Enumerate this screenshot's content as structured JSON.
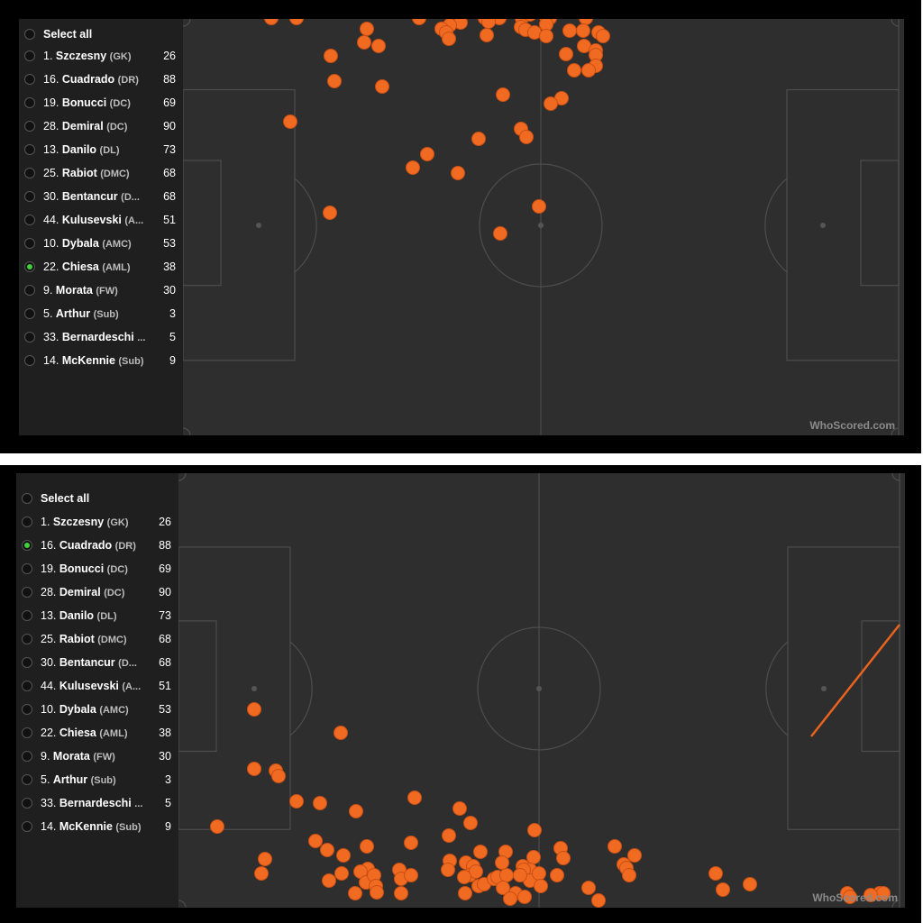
{
  "panels": [
    {
      "select_all": "Select all",
      "players": [
        {
          "num": "1.",
          "name": "Szczesny",
          "pos": "(GK)",
          "val": "26",
          "selected": false
        },
        {
          "num": "16.",
          "name": "Cuadrado",
          "pos": "(DR)",
          "val": "88",
          "selected": false
        },
        {
          "num": "19.",
          "name": "Bonucci",
          "pos": "(DC)",
          "val": "69",
          "selected": false
        },
        {
          "num": "28.",
          "name": "Demiral",
          "pos": "(DC)",
          "val": "90",
          "selected": false
        },
        {
          "num": "13.",
          "name": "Danilo",
          "pos": "(DL)",
          "val": "73",
          "selected": false
        },
        {
          "num": "25.",
          "name": "Rabiot",
          "pos": "(DMC)",
          "val": "68",
          "selected": false
        },
        {
          "num": "30.",
          "name": "Bentancur",
          "pos": "(D...",
          "val": "68",
          "selected": false
        },
        {
          "num": "44.",
          "name": "Kulusevski",
          "pos": "(A...",
          "val": "51",
          "selected": false
        },
        {
          "num": "10.",
          "name": "Dybala",
          "pos": "(AMC)",
          "val": "53",
          "selected": false
        },
        {
          "num": "22.",
          "name": "Chiesa",
          "pos": "(AML)",
          "val": "38",
          "selected": true
        },
        {
          "num": "9.",
          "name": "Morata",
          "pos": "(FW)",
          "val": "30",
          "selected": false
        },
        {
          "num": "5.",
          "name": "Arthur",
          "pos": "(Sub)",
          "val": "3",
          "selected": false
        },
        {
          "num": "33.",
          "name": "Bernardeschi",
          "pos": "...",
          "val": "5",
          "selected": false
        },
        {
          "num": "14.",
          "name": "McKennie",
          "pos": "(Sub)",
          "val": "9",
          "selected": false
        }
      ],
      "watermark": "WhoScored.com",
      "events": [
        [
          98,
          -1
        ],
        [
          126,
          -1
        ],
        [
          262,
          -1
        ],
        [
          335,
          -1
        ],
        [
          351,
          -1
        ],
        [
          376,
          -1
        ],
        [
          447,
          -1
        ],
        [
          385,
          -5
        ],
        [
          402,
          -4
        ],
        [
          407,
          -1
        ],
        [
          403,
          6
        ],
        [
          308,
          4
        ],
        [
          296,
          7
        ],
        [
          287,
          11
        ],
        [
          292,
          15
        ],
        [
          339,
          3
        ],
        [
          295,
          22
        ],
        [
          337,
          18
        ],
        [
          375,
          9
        ],
        [
          380,
          12
        ],
        [
          390,
          15
        ],
        [
          403,
          19
        ],
        [
          429,
          13
        ],
        [
          444,
          13
        ],
        [
          445,
          30
        ],
        [
          425,
          39
        ],
        [
          461,
          15
        ],
        [
          466,
          19
        ],
        [
          458,
          35
        ],
        [
          458,
          40
        ],
        [
          458,
          52
        ],
        [
          450,
          57
        ],
        [
          434,
          57
        ],
        [
          375,
          122
        ],
        [
          328,
          133
        ],
        [
          305,
          171
        ],
        [
          271,
          150
        ],
        [
          255,
          165
        ],
        [
          119,
          114
        ],
        [
          164,
          41
        ],
        [
          201,
          26
        ],
        [
          204,
          11
        ],
        [
          168,
          69
        ],
        [
          217,
          30
        ],
        [
          163,
          215
        ],
        [
          221,
          75
        ],
        [
          355,
          84
        ],
        [
          420,
          88
        ],
        [
          408,
          94
        ],
        [
          381,
          131
        ],
        [
          395,
          208
        ],
        [
          352,
          238
        ]
      ]
    },
    {
      "select_all": "Select all",
      "players": [
        {
          "num": "1.",
          "name": "Szczesny",
          "pos": "(GK)",
          "val": "26",
          "selected": false
        },
        {
          "num": "16.",
          "name": "Cuadrado",
          "pos": "(DR)",
          "val": "88",
          "selected": true
        },
        {
          "num": "19.",
          "name": "Bonucci",
          "pos": "(DC)",
          "val": "69",
          "selected": false
        },
        {
          "num": "28.",
          "name": "Demiral",
          "pos": "(DC)",
          "val": "90",
          "selected": false
        },
        {
          "num": "13.",
          "name": "Danilo",
          "pos": "(DL)",
          "val": "73",
          "selected": false
        },
        {
          "num": "25.",
          "name": "Rabiot",
          "pos": "(DMC)",
          "val": "68",
          "selected": false
        },
        {
          "num": "30.",
          "name": "Bentancur",
          "pos": "(D...",
          "val": "68",
          "selected": false
        },
        {
          "num": "44.",
          "name": "Kulusevski",
          "pos": "(A...",
          "val": "51",
          "selected": false
        },
        {
          "num": "10.",
          "name": "Dybala",
          "pos": "(AMC)",
          "val": "53",
          "selected": false
        },
        {
          "num": "22.",
          "name": "Chiesa",
          "pos": "(AML)",
          "val": "38",
          "selected": false
        },
        {
          "num": "9.",
          "name": "Morata",
          "pos": "(FW)",
          "val": "30",
          "selected": false
        },
        {
          "num": "5.",
          "name": "Arthur",
          "pos": "(Sub)",
          "val": "3",
          "selected": false
        },
        {
          "num": "33.",
          "name": "Bernardeschi",
          "pos": "...",
          "val": "5",
          "selected": false
        },
        {
          "num": "14.",
          "name": "McKennie",
          "pos": "(Sub)",
          "val": "9",
          "selected": false
        }
      ],
      "watermark": "WhoScored.com",
      "events": [
        [
          84,
          262
        ],
        [
          84,
          328
        ],
        [
          108,
          330
        ],
        [
          111,
          336
        ],
        [
          180,
          288
        ],
        [
          131,
          364
        ],
        [
          157,
          366
        ],
        [
          43,
          392
        ],
        [
          197,
          375
        ],
        [
          262,
          360
        ],
        [
          152,
          408
        ],
        [
          96,
          428
        ],
        [
          92,
          444
        ],
        [
          183,
          424
        ],
        [
          165,
          418
        ],
        [
          181,
          444
        ],
        [
          167,
          452
        ],
        [
          209,
          414
        ],
        [
          210,
          439
        ],
        [
          202,
          442
        ],
        [
          208,
          454
        ],
        [
          217,
          446
        ],
        [
          219,
          458
        ],
        [
          245,
          440
        ],
        [
          247,
          450
        ],
        [
          247,
          466
        ],
        [
          196,
          466
        ],
        [
          220,
          465
        ],
        [
          258,
          446
        ],
        [
          258,
          410
        ],
        [
          300,
          402
        ],
        [
          301,
          430
        ],
        [
          299,
          440
        ],
        [
          319,
          432
        ],
        [
          327,
          436
        ],
        [
          323,
          446
        ],
        [
          330,
          442
        ],
        [
          318,
          466
        ],
        [
          333,
          458
        ],
        [
          317,
          448
        ],
        [
          339,
          456
        ],
        [
          350,
          450
        ],
        [
          335,
          420
        ],
        [
          312,
          372
        ],
        [
          324,
          388
        ],
        [
          354,
          448
        ],
        [
          363,
          420
        ],
        [
          395,
          396
        ],
        [
          394,
          426
        ],
        [
          359,
          432
        ],
        [
          382,
          436
        ],
        [
          390,
          440
        ],
        [
          383,
          440
        ],
        [
          390,
          452
        ],
        [
          364,
          446
        ],
        [
          379,
          446
        ],
        [
          360,
          460
        ],
        [
          374,
          466
        ],
        [
          368,
          472
        ],
        [
          384,
          470
        ],
        [
          400,
          444
        ],
        [
          402,
          458
        ],
        [
          420,
          446
        ],
        [
          424,
          416
        ],
        [
          427,
          427
        ],
        [
          455,
          460
        ],
        [
          494,
          434
        ],
        [
          484,
          414
        ],
        [
          497,
          438
        ],
        [
          506,
          424
        ],
        [
          500,
          446
        ],
        [
          466,
          474
        ],
        [
          604,
          462
        ],
        [
          596,
          444
        ],
        [
          634,
          456
        ],
        [
          742,
          466
        ],
        [
          778,
          466
        ],
        [
          782,
          466
        ],
        [
          768,
          468
        ],
        [
          745,
          470
        ],
        [
          846,
          456
        ],
        [
          840,
          474
        ],
        [
          856,
          474
        ],
        [
          866,
          472
        ],
        [
          898,
          464
        ],
        [
          895,
          472
        ],
        [
          827,
          412
        ],
        [
          832,
          376
        ],
        [
          900,
          340
        ],
        [
          920,
          350
        ],
        [
          948,
          380
        ],
        [
          952,
          412
        ],
        [
          946,
          378
        ]
      ]
    }
  ]
}
